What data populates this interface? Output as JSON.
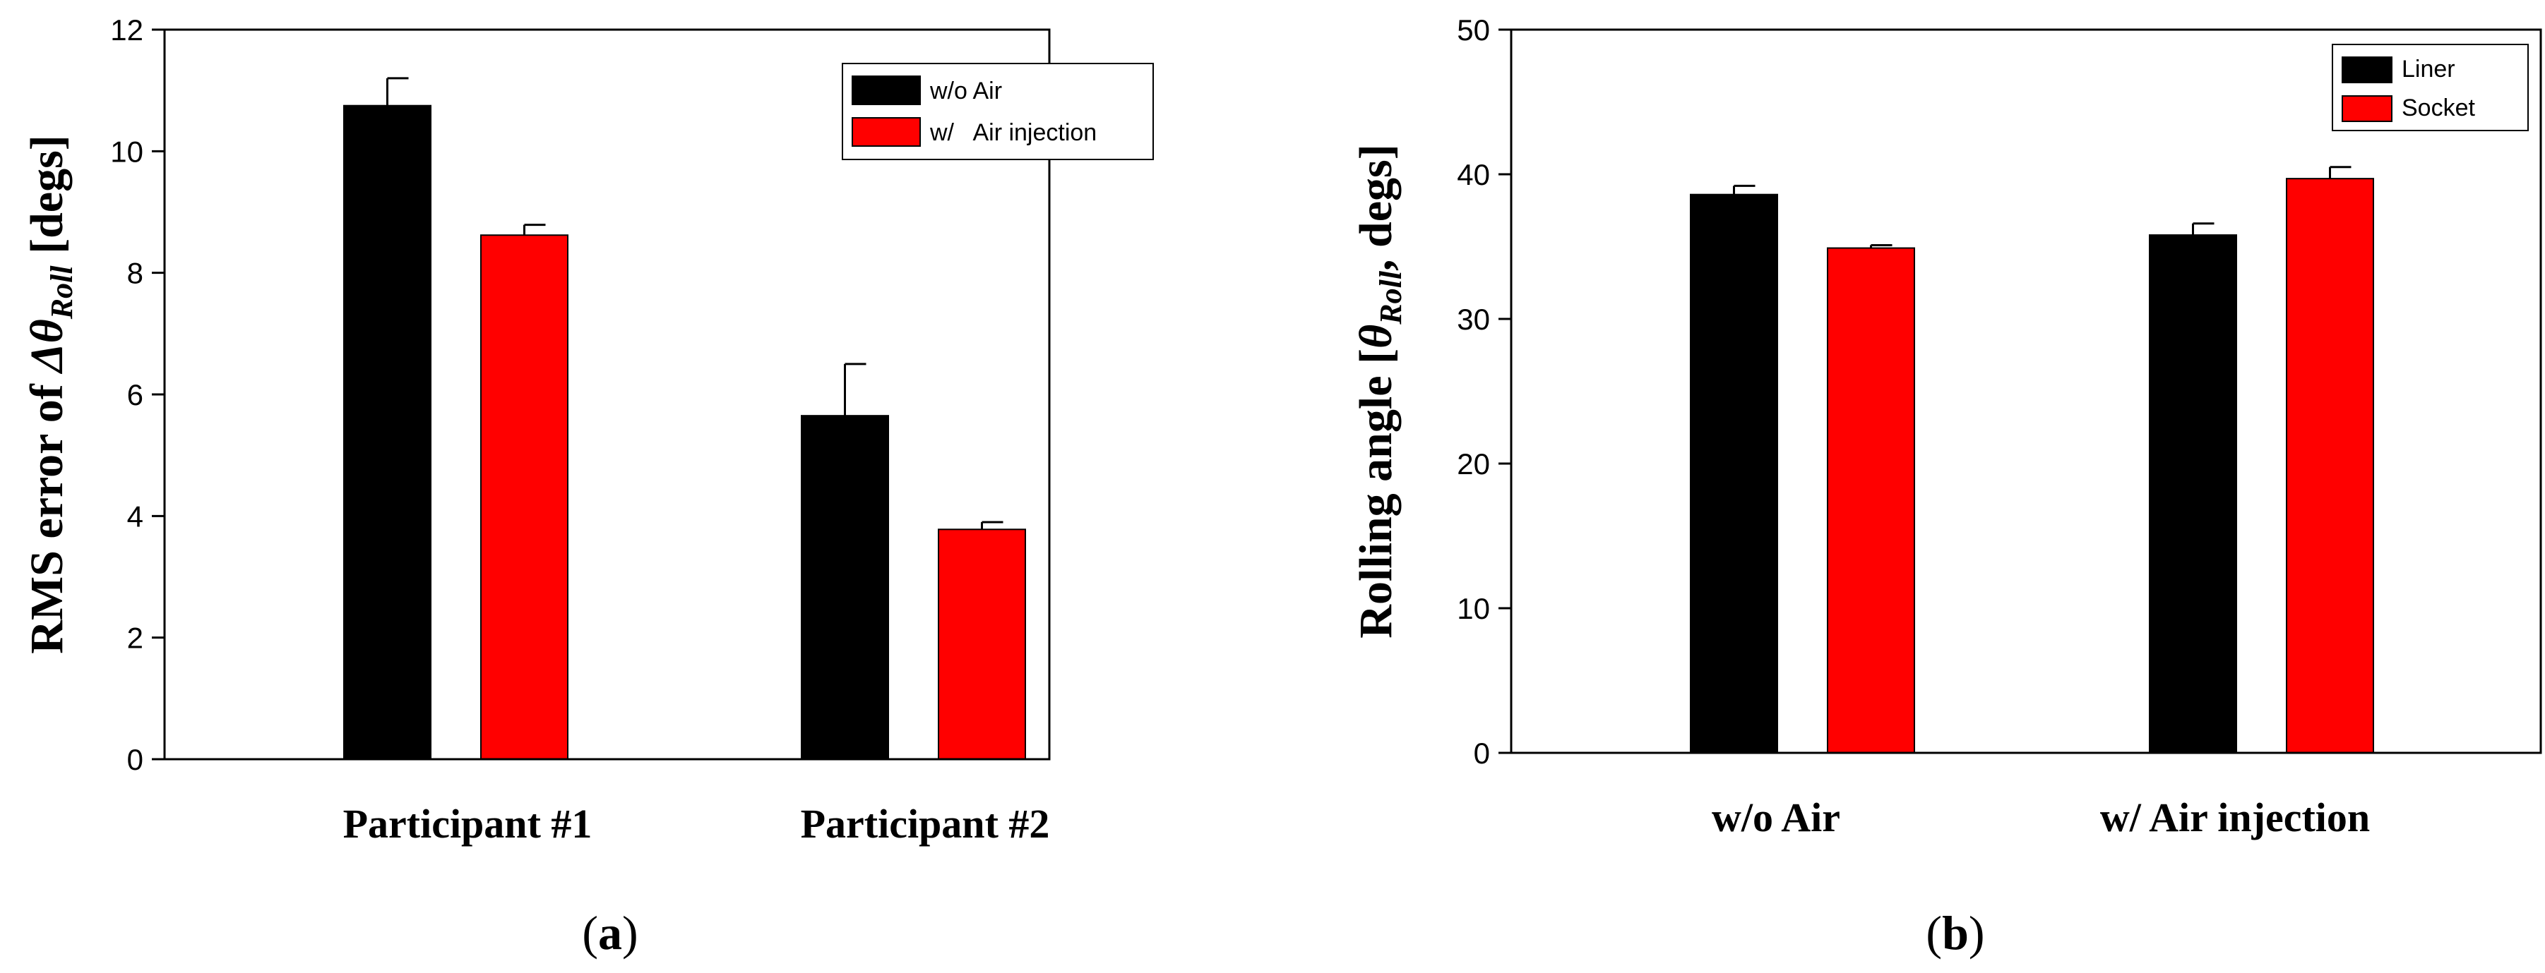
{
  "chart_data": [
    {
      "type": "bar",
      "panel_label": "a",
      "ylabel_parts": [
        {
          "text": "RMS error of ",
          "italic": false
        },
        {
          "text": "Δθ",
          "italic": true
        },
        {
          "text": "Roll",
          "italic": true,
          "sub": true
        },
        {
          "text": " [degs]",
          "italic": false
        }
      ],
      "categories": [
        "Participant #1",
        "Participant #2"
      ],
      "ylim": [
        0,
        12
      ],
      "yticks": [
        0,
        2,
        4,
        6,
        8,
        10,
        12
      ],
      "legend_position": "top-right",
      "series": [
        {
          "name": "w/o Air",
          "color": "#000000",
          "values": [
            10.75,
            5.65
          ],
          "errors": [
            0.45,
            0.85
          ]
        },
        {
          "name": "w/   Air injection",
          "color": "#ff0000",
          "values": [
            8.62,
            3.78
          ],
          "errors": [
            0.17,
            0.12
          ]
        }
      ]
    },
    {
      "type": "bar",
      "panel_label": "b",
      "ylabel_parts": [
        {
          "text": "Rolling angle [",
          "italic": false
        },
        {
          "text": "θ",
          "italic": true
        },
        {
          "text": "Roll",
          "italic": true,
          "sub": true
        },
        {
          "text": ", degs]",
          "italic": false
        }
      ],
      "categories": [
        "w/o Air",
        "w/ Air injection"
      ],
      "ylim": [
        0,
        50
      ],
      "yticks": [
        0,
        10,
        20,
        30,
        40,
        50
      ],
      "legend_position": "top-right",
      "series": [
        {
          "name": "Liner",
          "color": "#000000",
          "values": [
            38.6,
            35.8
          ],
          "errors": [
            0.6,
            0.8
          ]
        },
        {
          "name": "Socket",
          "color": "#ff0000",
          "values": [
            34.9,
            39.7
          ],
          "errors": [
            0.2,
            0.8
          ]
        }
      ]
    }
  ]
}
